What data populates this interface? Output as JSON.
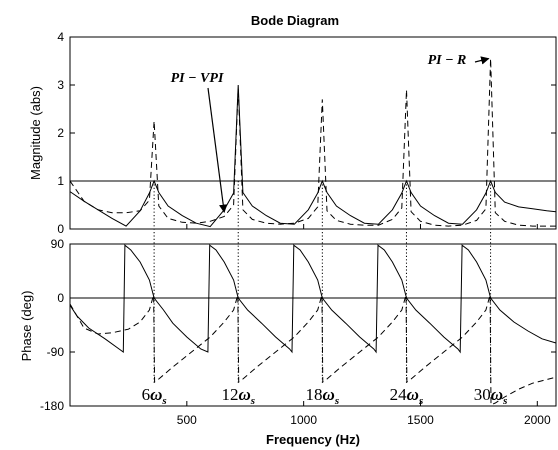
{
  "chart_data": {
    "type": "line",
    "title": "Bode Diagram",
    "xlabel": "Frequency (Hz)",
    "xlim": [
      0,
      2080
    ],
    "x_ticks": [
      500,
      1000,
      1500,
      2000
    ],
    "x_tick_labels": [
      "500",
      "1000",
      "1500",
      "2000"
    ],
    "grid": false,
    "resonances": {
      "frequencies": [
        360,
        720,
        1080,
        1440,
        1800
      ],
      "labels": [
        {
          "coef": "6",
          "omega": "ω",
          "sub": "s"
        },
        {
          "coef": "12",
          "omega": "ω",
          "sub": "s"
        },
        {
          "coef": "18",
          "omega": "ω",
          "sub": "s"
        },
        {
          "coef": "24",
          "omega": "ω",
          "sub": "s"
        },
        {
          "coef": "30",
          "omega": "ω",
          "sub": "s"
        }
      ]
    },
    "magnitude": {
      "ylabel": "Magnitude (abs)",
      "ylim": [
        0,
        4
      ],
      "y_ticks": [
        0,
        1,
        2,
        3,
        4
      ],
      "y_tick_labels": [
        "0",
        "1",
        "2",
        "3",
        "4"
      ],
      "reference_line": 1,
      "series": [
        {
          "name": "PI − VPI",
          "style": "solid",
          "x": [
            0,
            60,
            120,
            180,
            240,
            300,
            340,
            360,
            380,
            420,
            480,
            540,
            600,
            660,
            700,
            720,
            740,
            780,
            840,
            900,
            960,
            1020,
            1060,
            1080,
            1100,
            1140,
            1200,
            1260,
            1320,
            1380,
            1420,
            1440,
            1460,
            1500,
            1560,
            1620,
            1680,
            1740,
            1780,
            1800,
            1820,
            1860,
            1920,
            1980,
            2040,
            2080
          ],
          "y": [
            0.78,
            0.58,
            0.4,
            0.22,
            0.06,
            0.38,
            0.75,
            1.0,
            0.76,
            0.48,
            0.28,
            0.12,
            0.05,
            0.4,
            0.75,
            3.0,
            0.76,
            0.48,
            0.28,
            0.12,
            0.1,
            0.4,
            0.75,
            1.0,
            0.76,
            0.48,
            0.28,
            0.12,
            0.1,
            0.4,
            0.75,
            1.0,
            0.76,
            0.48,
            0.28,
            0.12,
            0.1,
            0.4,
            0.75,
            1.0,
            0.76,
            0.56,
            0.46,
            0.42,
            0.38,
            0.36
          ]
        },
        {
          "name": "PI − R",
          "style": "dashed",
          "x": [
            0,
            60,
            120,
            180,
            240,
            300,
            340,
            360,
            380,
            420,
            480,
            540,
            600,
            660,
            700,
            720,
            740,
            780,
            840,
            900,
            960,
            1020,
            1060,
            1080,
            1100,
            1140,
            1200,
            1260,
            1320,
            1380,
            1420,
            1440,
            1460,
            1500,
            1560,
            1620,
            1680,
            1740,
            1780,
            1800,
            1820,
            1860,
            1920,
            1980,
            2040,
            2080
          ],
          "y": [
            1.0,
            0.58,
            0.4,
            0.34,
            0.34,
            0.38,
            0.6,
            2.25,
            0.48,
            0.22,
            0.14,
            0.12,
            0.16,
            0.26,
            0.5,
            2.95,
            0.4,
            0.2,
            0.12,
            0.1,
            0.12,
            0.22,
            0.46,
            2.7,
            0.38,
            0.18,
            0.1,
            0.08,
            0.08,
            0.2,
            0.44,
            2.9,
            0.36,
            0.16,
            0.08,
            0.06,
            0.08,
            0.18,
            0.42,
            3.55,
            0.34,
            0.16,
            0.08,
            0.06,
            0.06,
            0.06
          ]
        }
      ]
    },
    "phase": {
      "ylabel": "Phase (deg)",
      "ylim": [
        -180,
        90
      ],
      "y_ticks": [
        90,
        0,
        -90,
        -180
      ],
      "y_tick_labels": [
        "90",
        "0",
        "-90",
        "-180"
      ],
      "reference_line": 0,
      "series": [
        {
          "name": "PI − VPI",
          "style": "solid",
          "x": [
            0,
            30,
            80,
            150,
            210,
            228,
            235,
            260,
            300,
            340,
            360,
            400,
            440,
            500,
            560,
            590,
            598,
            625,
            660,
            700,
            720,
            760,
            820,
            880,
            940,
            950,
            958,
            985,
            1020,
            1060,
            1080,
            1120,
            1180,
            1240,
            1300,
            1310,
            1318,
            1345,
            1380,
            1420,
            1440,
            1480,
            1540,
            1600,
            1660,
            1670,
            1678,
            1705,
            1740,
            1780,
            1800,
            1840,
            1900,
            1960,
            2020,
            2080
          ],
          "y": [
            -12,
            -30,
            -50,
            -68,
            -85,
            -90,
            88,
            80,
            60,
            30,
            0,
            -20,
            -42,
            -65,
            -85,
            -90,
            88,
            80,
            60,
            30,
            0,
            -20,
            -42,
            -65,
            -85,
            -90,
            88,
            80,
            60,
            30,
            0,
            -20,
            -42,
            -65,
            -85,
            -90,
            88,
            80,
            60,
            30,
            0,
            -20,
            -42,
            -65,
            -85,
            -90,
            88,
            80,
            60,
            30,
            0,
            -20,
            -40,
            -55,
            -68,
            -75
          ]
        },
        {
          "name": "PI − R",
          "style": "dashed",
          "x": [
            0,
            60,
            120,
            180,
            250,
            300,
            340,
            358,
            362,
            380,
            440,
            520,
            600,
            660,
            700,
            718,
            722,
            740,
            800,
            880,
            960,
            1020,
            1060,
            1078,
            1082,
            1100,
            1160,
            1240,
            1320,
            1380,
            1420,
            1438,
            1442,
            1460,
            1520,
            1600,
            1680,
            1740,
            1780,
            1798,
            1802,
            1820,
            1860,
            1920,
            1980,
            2040,
            2080
          ],
          "y": [
            -10,
            -50,
            -60,
            -58,
            -52,
            -40,
            -20,
            5,
            -140,
            -135,
            -115,
            -90,
            -65,
            -40,
            -20,
            5,
            -140,
            -135,
            -115,
            -90,
            -65,
            -40,
            -20,
            5,
            -140,
            -135,
            -115,
            -90,
            -65,
            -40,
            -20,
            5,
            -140,
            -135,
            -115,
            -90,
            -65,
            -40,
            -20,
            5,
            -178,
            -175,
            -165,
            -152,
            -142,
            -136,
            -132
          ]
        }
      ]
    },
    "annotations": [
      {
        "text": "PI − VPI",
        "points_to": {
          "panel": "magnitude",
          "x": 660,
          "y": 0.35
        }
      },
      {
        "text": "PI − R",
        "points_to": {
          "panel": "magnitude",
          "x": 1792,
          "y": 3.55
        }
      }
    ]
  }
}
